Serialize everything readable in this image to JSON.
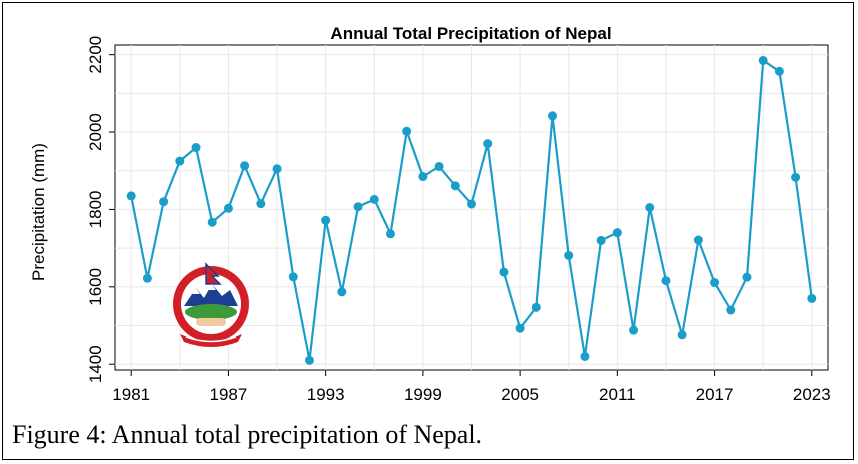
{
  "chart_data": {
    "type": "line",
    "title": "Annual Total Precipitation of Nepal",
    "xlabel": "",
    "ylabel": "Precipitation (mm)",
    "xlim": [
      1980,
      2024
    ],
    "ylim": [
      1385,
      2225
    ],
    "xticks": [
      "1981",
      "1987",
      "1993",
      "1999",
      "2005",
      "2011",
      "2017",
      "2023"
    ],
    "yticks": [
      "1400",
      "1600",
      "1800",
      "2000",
      "2200"
    ],
    "grid": true,
    "series_color": "#1a9ec9",
    "x": [
      1981,
      1982,
      1983,
      1984,
      1985,
      1986,
      1987,
      1988,
      1989,
      1990,
      1991,
      1992,
      1993,
      1994,
      1995,
      1996,
      1997,
      1998,
      1999,
      2000,
      2001,
      2002,
      2003,
      2004,
      2005,
      2006,
      2007,
      2008,
      2009,
      2010,
      2011,
      2012,
      2013,
      2014,
      2015,
      2016,
      2017,
      2018,
      2019,
      2020,
      2021,
      2022,
      2023
    ],
    "y": [
      1835,
      1622,
      1820,
      1925,
      1960,
      1767,
      1803,
      1913,
      1815,
      1905,
      1626,
      1410,
      1772,
      1587,
      1807,
      1826,
      1737,
      2002,
      1885,
      1911,
      1861,
      1814,
      1970,
      1638,
      1493,
      1547,
      2042,
      1681,
      1420,
      1720,
      1740,
      1488,
      1805,
      1616,
      1476,
      1721,
      1611,
      1540,
      1625,
      2185,
      2157,
      1883,
      1570
    ]
  },
  "caption": "Figure 4: Annual total precipitation of Nepal.",
  "emblem": {
    "name": "Emblem of Nepal"
  }
}
